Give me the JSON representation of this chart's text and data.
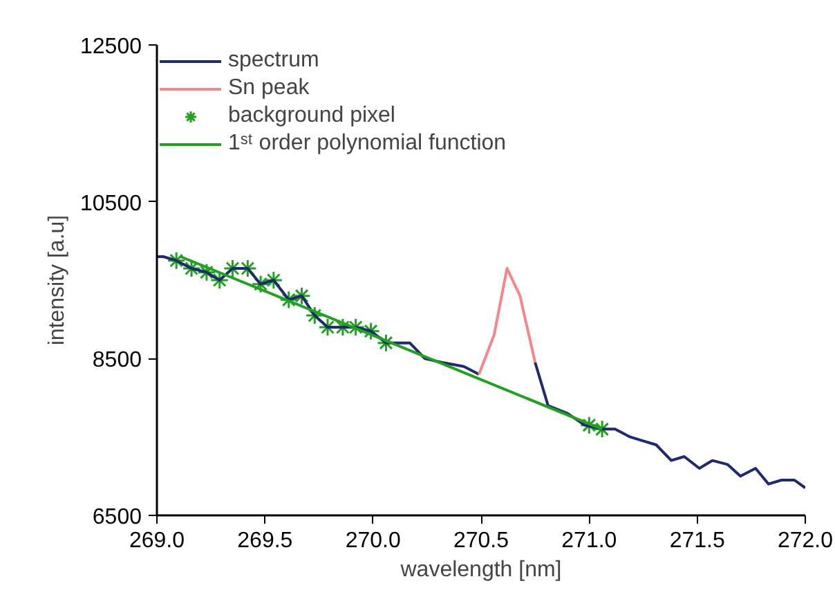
{
  "chart_data": {
    "type": "line",
    "xlabel": "wavelength [nm]",
    "ylabel": "intensity [a.u]",
    "xlim": [
      269.0,
      272.0
    ],
    "ylim": [
      6500,
      12500
    ],
    "xticks": [
      {
        "value": 269.0,
        "label": "269.0"
      },
      {
        "value": 269.5,
        "label": "269.5"
      },
      {
        "value": 270.0,
        "label": "270.0"
      },
      {
        "value": 270.5,
        "label": "270.5"
      },
      {
        "value": 271.0,
        "label": "271.0"
      },
      {
        "value": 271.5,
        "label": "271.5"
      },
      {
        "value": 272.0,
        "label": "272.0"
      }
    ],
    "yticks": [
      6500,
      8500,
      10500,
      12500
    ],
    "grid": false,
    "legend": "top left",
    "series": [
      {
        "name": "spectrum",
        "color": "#1f2a6e",
        "x": [
          269.0,
          269.03,
          269.09,
          269.16,
          269.23,
          269.29,
          269.35,
          269.42,
          269.48,
          269.54,
          269.61,
          269.67,
          269.73,
          269.79,
          269.86,
          269.92,
          269.99,
          270.06,
          270.17,
          270.24,
          270.32,
          270.42,
          270.49,
          270.56,
          270.62,
          270.68,
          270.75,
          270.81,
          270.9,
          270.98,
          271.06,
          271.12,
          271.19,
          271.25,
          271.31,
          271.38,
          271.44,
          271.51,
          271.57,
          271.64,
          271.7,
          271.77,
          271.83,
          271.89,
          271.95,
          272.0
        ],
        "values": [
          9800,
          9800,
          9750,
          9650,
          9600,
          9500,
          9650,
          9650,
          9450,
          9500,
          9250,
          9300,
          9050,
          8900,
          8900,
          8900,
          8850,
          8700,
          8700,
          8500,
          8450,
          8400,
          8300,
          null,
          null,
          null,
          8450,
          7900,
          7800,
          7650,
          7600,
          7600,
          7500,
          7450,
          7400,
          7200,
          7250,
          7100,
          7200,
          7150,
          7000,
          7100,
          6900,
          6950,
          6950,
          6850
        ]
      },
      {
        "name": "Sn peak",
        "color": "#f4878b",
        "x": [
          270.49,
          270.56,
          270.62,
          270.68,
          270.75
        ],
        "values": [
          8300,
          8800,
          9650,
          9300,
          8450
        ]
      },
      {
        "name": "background pixel",
        "type": "scatter",
        "marker": "cross",
        "color": "#22a022",
        "x": [
          269.09,
          269.16,
          269.23,
          269.29,
          269.35,
          269.42,
          269.48,
          269.54,
          269.61,
          269.67,
          269.73,
          269.79,
          269.86,
          269.92,
          269.99,
          270.06,
          271.0,
          271.06
        ],
        "values": [
          9750,
          9650,
          9600,
          9500,
          9650,
          9650,
          9450,
          9500,
          9250,
          9300,
          9050,
          8900,
          8900,
          8900,
          8850,
          8700,
          7650,
          7600
        ]
      },
      {
        "name": "1ˢᵗ order polynomial function",
        "color": "#22a022",
        "x": [
          269.11,
          271.06
        ],
        "values": [
          9800,
          7600
        ]
      }
    ]
  }
}
